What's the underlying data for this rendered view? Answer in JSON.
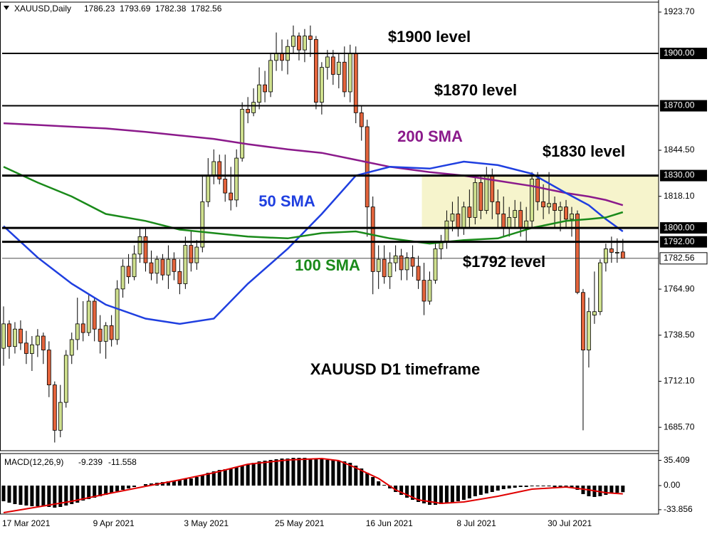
{
  "chart_data": [
    {
      "type": "candlestick",
      "title": "XAUUSD,Daily",
      "categories": [
        "17 Mar 2021",
        null,
        null,
        null,
        null,
        null,
        null,
        null,
        null,
        null,
        null,
        null,
        null,
        null,
        null,
        null,
        "9 Apr 2021",
        null,
        null,
        null,
        null,
        null,
        null,
        null,
        null,
        null,
        null,
        null,
        null,
        null,
        null,
        null,
        "3 May 2021",
        null,
        null,
        null,
        null,
        null,
        null,
        null,
        null,
        null,
        null,
        null,
        null,
        null,
        null,
        null,
        "25 May 2021",
        null,
        null,
        null,
        null,
        null,
        null,
        null,
        null,
        null,
        null,
        null,
        null,
        null,
        null,
        null,
        "16 Jun 2021",
        null,
        null,
        null,
        null,
        null,
        null,
        null,
        null,
        null,
        null,
        null,
        null,
        null,
        null,
        null,
        "8 Jul 2021",
        null,
        null,
        null,
        null,
        null,
        null,
        null,
        null,
        null,
        null,
        null,
        null,
        null,
        null,
        null,
        "30 Jul 2021",
        null,
        null,
        null,
        null,
        null,
        null,
        null,
        null,
        null,
        null,
        null,
        null,
        null
      ],
      "open": [
        1731,
        1745,
        1732,
        1742,
        1734,
        1728,
        1733,
        1738,
        1730,
        1710,
        1684,
        1700,
        1727,
        1736,
        1745,
        1740,
        1758,
        1742,
        1735,
        1744,
        1736,
        1765,
        1778,
        1772,
        1785,
        1795,
        1780,
        1774,
        1782,
        1773,
        1782,
        1775,
        1768,
        1790,
        1780,
        1789,
        1815,
        1830,
        1838,
        1828,
        1820,
        1816,
        1840,
        1868,
        1866,
        1872,
        1882,
        1878,
        1896,
        1900,
        1896,
        1904,
        1910,
        1902,
        1910,
        1908,
        1872,
        1892,
        1898,
        1888,
        1895,
        1878,
        1900,
        1866,
        1858,
        1812,
        1775,
        1782,
        1772,
        1780,
        1784,
        1776,
        1783,
        1778,
        1770,
        1758,
        1770,
        1788,
        1792,
        1804,
        1808,
        1800,
        1812,
        1806,
        1826,
        1810,
        1830,
        1815,
        1808,
        1800,
        1806,
        1810,
        1800,
        1804,
        1828,
        1815,
        1812,
        1814,
        1810,
        1812,
        1805,
        1808,
        1763,
        1730,
        1750,
        1752,
        1780,
        1788,
        1786,
        1786.23
      ],
      "high": [
        1755,
        1747,
        1746,
        1747,
        1741,
        1738,
        1742,
        1740,
        1735,
        1712,
        1710,
        1730,
        1740,
        1760,
        1758,
        1762,
        1760,
        1750,
        1746,
        1750,
        1770,
        1782,
        1785,
        1790,
        1800,
        1800,
        1787,
        1784,
        1785,
        1790,
        1786,
        1782,
        1795,
        1798,
        1793,
        1830,
        1840,
        1845,
        1842,
        1842,
        1835,
        1845,
        1872,
        1875,
        1880,
        1892,
        1890,
        1900,
        1912,
        1908,
        1908,
        1916,
        1912,
        1914,
        1916,
        1910,
        1895,
        1902,
        1902,
        1900,
        1904,
        1905,
        1904,
        1870,
        1862,
        1818,
        1790,
        1790,
        1786,
        1790,
        1788,
        1786,
        1790,
        1784,
        1780,
        1775,
        1792,
        1796,
        1810,
        1815,
        1818,
        1815,
        1822,
        1830,
        1830,
        1835,
        1834,
        1822,
        1818,
        1812,
        1816,
        1815,
        1812,
        1832,
        1832,
        1825,
        1832,
        1818,
        1815,
        1816,
        1812,
        1810,
        1765,
        1760,
        1775,
        1782,
        1791,
        1795,
        1794,
        1793.69
      ],
      "low": [
        1721,
        1725,
        1728,
        1730,
        1722,
        1718,
        1726,
        1722,
        1703,
        1677,
        1680,
        1697,
        1722,
        1730,
        1735,
        1738,
        1735,
        1728,
        1725,
        1732,
        1733,
        1760,
        1768,
        1770,
        1780,
        1775,
        1770,
        1768,
        1770,
        1765,
        1770,
        1762,
        1765,
        1775,
        1776,
        1786,
        1812,
        1825,
        1825,
        1815,
        1810,
        1812,
        1838,
        1860,
        1864,
        1868,
        1872,
        1875,
        1890,
        1890,
        1888,
        1900,
        1896,
        1895,
        1898,
        1868,
        1865,
        1885,
        1882,
        1880,
        1875,
        1872,
        1860,
        1850,
        1795,
        1762,
        1765,
        1768,
        1765,
        1775,
        1770,
        1770,
        1772,
        1765,
        1750,
        1756,
        1768,
        1782,
        1788,
        1798,
        1795,
        1796,
        1800,
        1802,
        1805,
        1808,
        1805,
        1800,
        1795,
        1795,
        1800,
        1795,
        1792,
        1800,
        1810,
        1805,
        1808,
        1800,
        1798,
        1800,
        1795,
        1762,
        1684,
        1720,
        1745,
        1750,
        1775,
        1780,
        1780,
        1782.38
      ],
      "close": [
        1745,
        1732,
        1742,
        1734,
        1728,
        1733,
        1738,
        1730,
        1710,
        1684,
        1700,
        1727,
        1736,
        1745,
        1740,
        1758,
        1742,
        1735,
        1744,
        1736,
        1765,
        1778,
        1772,
        1785,
        1795,
        1780,
        1774,
        1782,
        1773,
        1782,
        1775,
        1768,
        1790,
        1780,
        1789,
        1815,
        1830,
        1838,
        1828,
        1820,
        1816,
        1840,
        1868,
        1866,
        1872,
        1882,
        1878,
        1896,
        1900,
        1896,
        1904,
        1910,
        1902,
        1910,
        1908,
        1872,
        1892,
        1898,
        1888,
        1895,
        1878,
        1900,
        1866,
        1858,
        1812,
        1775,
        1782,
        1772,
        1780,
        1784,
        1776,
        1783,
        1778,
        1770,
        1758,
        1770,
        1788,
        1792,
        1804,
        1808,
        1800,
        1812,
        1806,
        1826,
        1810,
        1830,
        1815,
        1808,
        1800,
        1806,
        1810,
        1800,
        1804,
        1828,
        1815,
        1812,
        1814,
        1810,
        1812,
        1805,
        1808,
        1763,
        1730,
        1752,
        1752,
        1780,
        1788,
        1786,
        1786,
        1782.56
      ],
      "up_color": "#cfe08e",
      "down_color": "#e4643c",
      "ylim": [
        1672.3,
        1929.4
      ],
      "yticks": [
        {
          "value": 1923.7,
          "label": "1923.70"
        },
        {
          "value": 1844.5,
          "label": "1844.50"
        },
        {
          "value": 1818.1,
          "label": "1818.10"
        },
        {
          "value": 1764.9,
          "label": "1764.90"
        },
        {
          "value": 1738.5,
          "label": "1738.50"
        },
        {
          "value": 1712.1,
          "label": "1712.10"
        },
        {
          "value": 1685.7,
          "label": "1685.70"
        }
      ],
      "levels": [
        {
          "value": 1900,
          "label": "1900.00"
        },
        {
          "value": 1870,
          "label": "1870.00"
        },
        {
          "value": 1830,
          "label": "1830.00"
        },
        {
          "value": 1800,
          "label": "1800.00"
        },
        {
          "value": 1792,
          "label": "1792.00"
        }
      ],
      "zone_color": "#f6f4cc",
      "series": [
        {
          "name": "200 SMA",
          "color": "#8b1a8b",
          "x": [
            0,
            6,
            12,
            18,
            25,
            31,
            37,
            43,
            50,
            56,
            62,
            68,
            75,
            81,
            87,
            93,
            99,
            103,
            106,
            109
          ],
          "values": [
            1860,
            1859,
            1858,
            1857,
            1855,
            1853,
            1851,
            1848,
            1845,
            1843,
            1839,
            1835,
            1832,
            1830,
            1827,
            1824,
            1820,
            1818,
            1816,
            1813
          ]
        },
        {
          "name": "50 SMA",
          "color": "#1f3fe0",
          "x": [
            0,
            6,
            12,
            18,
            25,
            31,
            37,
            43,
            50,
            56,
            62,
            68,
            75,
            81,
            87,
            93,
            99,
            103,
            106,
            109
          ],
          "values": [
            1801,
            1783,
            1768,
            1756,
            1748,
            1745,
            1748,
            1768,
            1788,
            1808,
            1830,
            1835,
            1834,
            1838,
            1836,
            1831,
            1820,
            1813,
            1805,
            1798
          ]
        },
        {
          "name": "100 SMA",
          "color": "#1a8a1a",
          "x": [
            0,
            6,
            12,
            18,
            25,
            31,
            37,
            43,
            50,
            56,
            62,
            68,
            75,
            81,
            87,
            93,
            99,
            103,
            106,
            109
          ],
          "values": [
            1835,
            1826,
            1818,
            1808,
            1804,
            1799,
            1797,
            1795,
            1794,
            1797,
            1798,
            1794,
            1791,
            1793,
            1794,
            1800,
            1804,
            1805,
            1806,
            1809
          ]
        }
      ],
      "annotations": [
        "$1900 level",
        "$1870 level",
        "$1830 level",
        "$1792 level",
        "XAUUSD D1 timeframe"
      ]
    },
    {
      "type": "bar",
      "title": "MACD(12,26,9)",
      "values": [
        -22,
        -24,
        -26,
        -27,
        -28,
        -29,
        -29,
        -29,
        -30,
        -31,
        -30,
        -28,
        -26,
        -24,
        -21,
        -19,
        -17,
        -15,
        -13,
        -11,
        -8,
        -6,
        -4,
        -2,
        0,
        2,
        3,
        4,
        5,
        6,
        7,
        8,
        9,
        10,
        12,
        15,
        18,
        20,
        22,
        23,
        24,
        26,
        28,
        30,
        32,
        34,
        35,
        36,
        37,
        38,
        38,
        39,
        39,
        39,
        38,
        37,
        37,
        36,
        36,
        35,
        34,
        32,
        28,
        24,
        18,
        12,
        6,
        1,
        -4,
        -9,
        -13,
        -17,
        -20,
        -23,
        -25,
        -27,
        -27,
        -26,
        -25,
        -24,
        -22,
        -20,
        -18,
        -15,
        -13,
        -11,
        -9,
        -7,
        -5,
        -4,
        -3,
        -2,
        -2,
        -1,
        -1,
        -1,
        -1,
        -2,
        -2,
        -3,
        -3,
        -6,
        -12,
        -15,
        -16,
        -15,
        -13,
        -11,
        -10,
        -9.239
      ],
      "color": "#000000",
      "lines": [
        {
          "color": "#e00000",
          "x": [
            0,
            6,
            12,
            18,
            25,
            31,
            37,
            43,
            50,
            56,
            59,
            62,
            66,
            69,
            73,
            77,
            81,
            87,
            93,
            99,
            103,
            106,
            109
          ],
          "values": [
            -38,
            -30,
            -22,
            -12,
            -1,
            8,
            18,
            30,
            36,
            38,
            35,
            25,
            10,
            -6,
            -20,
            -25,
            -23,
            -15,
            -5,
            -2,
            -6,
            -10,
            -11.558
          ]
        }
      ],
      "ylim": [
        -40,
        45
      ],
      "yticks": [
        35.409,
        {
          "value": 0,
          "label": "0.00"
        },
        -33.856
      ]
    }
  ]
}
